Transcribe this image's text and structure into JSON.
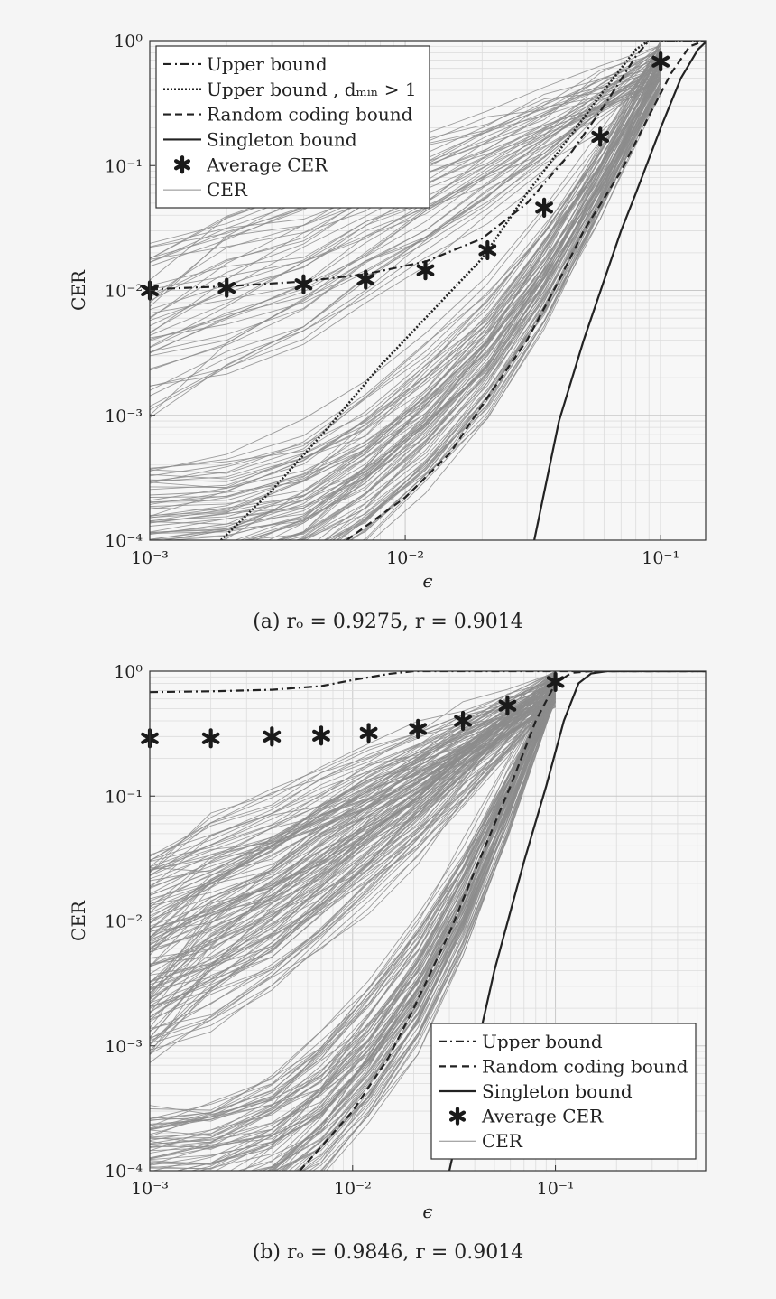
{
  "colors": {
    "background": "#f5f5f5",
    "plot_bg": "#f7f7f7",
    "major_grid": "#c8c8c8",
    "minor_grid": "#dcdcdc",
    "axis": "#333333",
    "bound_line": "#222222",
    "cer_line": "#8c8c8c",
    "marker": "#1a1a1a"
  },
  "chart_data": [
    {
      "id": "a",
      "type": "line",
      "caption": "(a) rₒ = 0.9275, r = 0.9014",
      "xlabel": "ϵ",
      "ylabel": "CER",
      "xscale": "log",
      "yscale": "log",
      "xlim": [
        0.001,
        0.15
      ],
      "ylim": [
        0.0001,
        1
      ],
      "grid": true,
      "legend_position": "top-left",
      "x_ticks": [
        {
          "value": 0.001,
          "label": "10⁻³"
        },
        {
          "value": 0.01,
          "label": "10⁻²"
        },
        {
          "value": 0.1,
          "label": "10⁻¹"
        }
      ],
      "y_ticks": [
        {
          "value": 0.0001,
          "label": "10⁻⁴"
        },
        {
          "value": 0.001,
          "label": "10⁻³"
        },
        {
          "value": 0.01,
          "label": "10⁻²"
        },
        {
          "value": 0.1,
          "label": "10⁻¹"
        },
        {
          "value": 1,
          "label": "10⁰"
        }
      ],
      "legend": [
        {
          "label": "Upper bound",
          "style": "dashdot"
        },
        {
          "label": "Upper bound , dₘᵢₙ > 1",
          "style": "dotted"
        },
        {
          "label": "Random coding bound",
          "style": "dashed"
        },
        {
          "label": "Singleton bound",
          "style": "solid"
        },
        {
          "label": "Average CER",
          "style": "marker"
        },
        {
          "label": "CER",
          "style": "thin"
        }
      ],
      "series": [
        {
          "name": "Upper bound",
          "style": "dashdot",
          "points": [
            [
              0.001,
              0.0102
            ],
            [
              0.002,
              0.0108
            ],
            [
              0.004,
              0.0118
            ],
            [
              0.007,
              0.0135
            ],
            [
              0.012,
              0.017
            ],
            [
              0.02,
              0.026
            ],
            [
              0.03,
              0.05
            ],
            [
              0.045,
              0.13
            ],
            [
              0.06,
              0.3
            ],
            [
              0.08,
              0.75
            ],
            [
              0.09,
              1.0
            ],
            [
              0.15,
              1.0
            ]
          ]
        },
        {
          "name": "Upper bound , dmin > 1",
          "style": "dotted",
          "points": [
            [
              0.0019,
              0.0001
            ],
            [
              0.003,
              0.00025
            ],
            [
              0.005,
              0.0008
            ],
            [
              0.008,
              0.0025
            ],
            [
              0.012,
              0.006
            ],
            [
              0.02,
              0.018
            ],
            [
              0.03,
              0.06
            ],
            [
              0.045,
              0.18
            ],
            [
              0.06,
              0.4
            ],
            [
              0.08,
              0.85
            ],
            [
              0.09,
              1.0
            ],
            [
              0.15,
              1.0
            ]
          ]
        },
        {
          "name": "Random coding bound",
          "style": "dashed",
          "points": [
            [
              0.0059,
              0.0001
            ],
            [
              0.01,
              0.00022
            ],
            [
              0.015,
              0.0005
            ],
            [
              0.02,
              0.0012
            ],
            [
              0.03,
              0.004
            ],
            [
              0.04,
              0.012
            ],
            [
              0.05,
              0.03
            ],
            [
              0.07,
              0.09
            ],
            [
              0.09,
              0.25
            ],
            [
              0.11,
              0.55
            ],
            [
              0.13,
              0.9
            ],
            [
              0.15,
              1.0
            ]
          ]
        },
        {
          "name": "Singleton bound",
          "style": "solid",
          "points": [
            [
              0.032,
              0.0001
            ],
            [
              0.04,
              0.0009
            ],
            [
              0.05,
              0.004
            ],
            [
              0.06,
              0.012
            ],
            [
              0.07,
              0.03
            ],
            [
              0.08,
              0.06
            ],
            [
              0.1,
              0.2
            ],
            [
              0.12,
              0.5
            ],
            [
              0.14,
              0.85
            ],
            [
              0.15,
              0.97
            ]
          ]
        },
        {
          "name": "Average CER",
          "style": "marker",
          "points": [
            [
              0.001,
              0.01
            ],
            [
              0.002,
              0.0105
            ],
            [
              0.004,
              0.0112
            ],
            [
              0.007,
              0.0122
            ],
            [
              0.012,
              0.0145
            ],
            [
              0.021,
              0.021
            ],
            [
              0.035,
              0.046
            ],
            [
              0.058,
              0.17
            ],
            [
              0.1,
              0.68
            ]
          ]
        }
      ],
      "cer_curves": {
        "x": [
          0.001,
          0.002,
          0.004,
          0.007,
          0.012,
          0.021,
          0.035,
          0.058,
          0.1
        ],
        "count": 130,
        "high_band": {
          "share": 0.35,
          "y_start_range": [
            0.001,
            0.025
          ],
          "y_end_range": [
            0.45,
            0.95
          ]
        },
        "low_band": {
          "share": 0.65,
          "y_start_range": [
            3e-05,
            0.0004
          ],
          "y_end_range": [
            0.4,
            0.9
          ]
        }
      }
    },
    {
      "id": "b",
      "type": "line",
      "caption": "(b) rₒ = 0.9846, r = 0.9014",
      "xlabel": "ϵ",
      "ylabel": "CER",
      "xscale": "log",
      "yscale": "log",
      "xlim": [
        0.001,
        0.55
      ],
      "ylim": [
        0.0001,
        1
      ],
      "grid": true,
      "legend_position": "bottom-right",
      "x_ticks": [
        {
          "value": 0.001,
          "label": "10⁻³"
        },
        {
          "value": 0.01,
          "label": "10⁻²"
        },
        {
          "value": 0.1,
          "label": "10⁻¹"
        }
      ],
      "y_ticks": [
        {
          "value": 0.0001,
          "label": "10⁻⁴"
        },
        {
          "value": 0.001,
          "label": "10⁻³"
        },
        {
          "value": 0.01,
          "label": "10⁻²"
        },
        {
          "value": 0.1,
          "label": "10⁻¹"
        },
        {
          "value": 1,
          "label": "10⁰"
        }
      ],
      "legend": [
        {
          "label": "Upper bound",
          "style": "dashdot"
        },
        {
          "label": "Random coding bound",
          "style": "dashed"
        },
        {
          "label": "Singleton bound",
          "style": "solid"
        },
        {
          "label": "Average CER",
          "style": "marker"
        },
        {
          "label": "CER",
          "style": "thin"
        }
      ],
      "series": [
        {
          "name": "Upper bound",
          "style": "dashdot",
          "points": [
            [
              0.001,
              0.68
            ],
            [
              0.002,
              0.69
            ],
            [
              0.004,
              0.71
            ],
            [
              0.007,
              0.76
            ],
            [
              0.01,
              0.85
            ],
            [
              0.015,
              0.95
            ],
            [
              0.02,
              1.0
            ],
            [
              0.55,
              1.0
            ]
          ]
        },
        {
          "name": "Random coding bound",
          "style": "dashed",
          "points": [
            [
              0.0055,
              0.0001
            ],
            [
              0.01,
              0.0003
            ],
            [
              0.015,
              0.0008
            ],
            [
              0.02,
              0.002
            ],
            [
              0.03,
              0.008
            ],
            [
              0.04,
              0.025
            ],
            [
              0.06,
              0.12
            ],
            [
              0.08,
              0.4
            ],
            [
              0.1,
              0.8
            ],
            [
              0.12,
              0.97
            ],
            [
              0.15,
              1.0
            ],
            [
              0.55,
              1.0
            ]
          ]
        },
        {
          "name": "Singleton bound",
          "style": "solid",
          "points": [
            [
              0.03,
              0.0001
            ],
            [
              0.04,
              0.0008
            ],
            [
              0.05,
              0.004
            ],
            [
              0.07,
              0.03
            ],
            [
              0.09,
              0.12
            ],
            [
              0.11,
              0.4
            ],
            [
              0.13,
              0.8
            ],
            [
              0.15,
              0.96
            ],
            [
              0.18,
              1.0
            ],
            [
              0.55,
              1.0
            ]
          ]
        },
        {
          "name": "Average CER",
          "style": "marker",
          "points": [
            [
              0.001,
              0.29
            ],
            [
              0.002,
              0.29
            ],
            [
              0.004,
              0.3
            ],
            [
              0.007,
              0.305
            ],
            [
              0.012,
              0.32
            ],
            [
              0.021,
              0.345
            ],
            [
              0.035,
              0.4
            ],
            [
              0.058,
              0.53
            ],
            [
              0.1,
              0.82
            ]
          ]
        }
      ],
      "cer_curves": {
        "x": [
          0.001,
          0.002,
          0.004,
          0.007,
          0.012,
          0.021,
          0.035,
          0.058,
          0.1
        ],
        "count": 220,
        "high_band": {
          "share": 0.6,
          "y_start_range": [
            0.0008,
            0.03
          ],
          "y_end_range": [
            0.55,
            0.98
          ]
        },
        "low_band": {
          "share": 0.4,
          "y_start_range": [
            3e-05,
            0.0003
          ],
          "y_end_range": [
            0.6,
            0.98
          ]
        }
      }
    }
  ]
}
